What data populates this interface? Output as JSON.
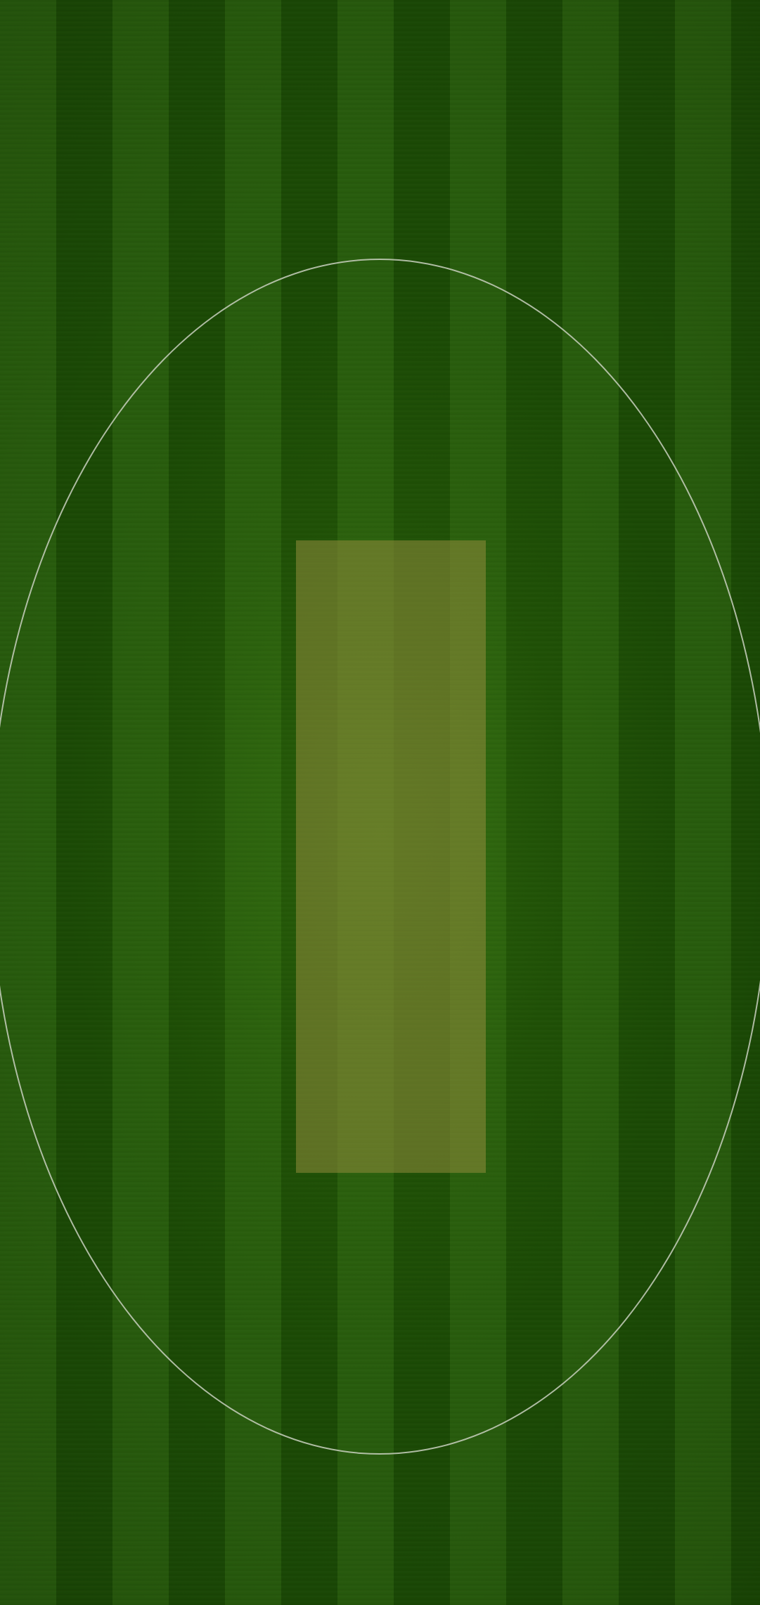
{
  "screen": {
    "name": "cricket-field",
    "colors": {
      "stripe_light": "#285c0d",
      "stripe_dark": "#1b4a05",
      "boundary_line": "#c9d0c0",
      "pitch": "#918c3c"
    }
  }
}
